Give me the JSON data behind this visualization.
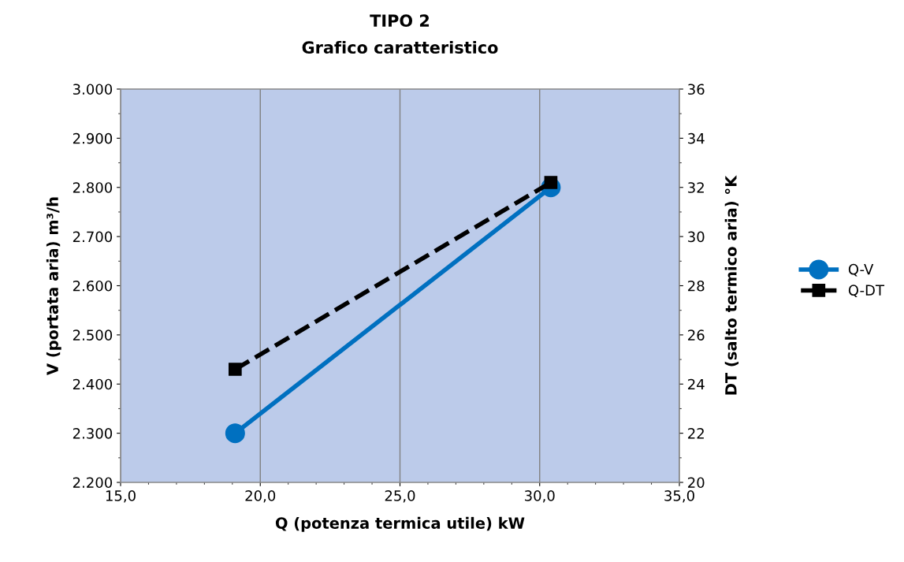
{
  "chart_data": {
    "type": "line",
    "title": "TIPO 2",
    "subtitle": "Grafico caratteristico",
    "xlabel": "Q (potenza termica utile) kW",
    "ylabel": "V (portata aria) m³/h",
    "y2label": "DT (salto termico aria) °K",
    "x": [
      19.1,
      30.4
    ],
    "series": [
      {
        "name": "Q-V",
        "color": "#0070c0",
        "values": [
          2300,
          2800
        ],
        "marker": "circle",
        "line_style": "solid"
      },
      {
        "name": "Q-DT",
        "color": "#000000",
        "values": [
          24.6,
          32.2
        ],
        "marker": "square",
        "line_style": "dashed",
        "axis": "y2"
      }
    ],
    "xlim": [
      15,
      35
    ],
    "xticks": [
      {
        "value": 15,
        "label": "15,0"
      },
      {
        "value": 20,
        "label": "20,0"
      },
      {
        "value": 25,
        "label": "25,0"
      },
      {
        "value": 30,
        "label": "30,0"
      },
      {
        "value": 35,
        "label": "35,0"
      }
    ],
    "ylim": [
      2200,
      3000
    ],
    "yticks": [
      {
        "value": 2200,
        "label": "2.200"
      },
      {
        "value": 2300,
        "label": "2.300"
      },
      {
        "value": 2400,
        "label": "2.400"
      },
      {
        "value": 2500,
        "label": "2.500"
      },
      {
        "value": 2600,
        "label": "2.600"
      },
      {
        "value": 2700,
        "label": "2.700"
      },
      {
        "value": 2800,
        "label": "2.800"
      },
      {
        "value": 2900,
        "label": "2.900"
      },
      {
        "value": 3000,
        "label": "3.000"
      }
    ],
    "y2lim": [
      20,
      36
    ],
    "y2ticks": [
      20,
      22,
      24,
      26,
      28,
      30,
      32,
      34,
      36
    ],
    "grid": "x",
    "legend": "right"
  }
}
